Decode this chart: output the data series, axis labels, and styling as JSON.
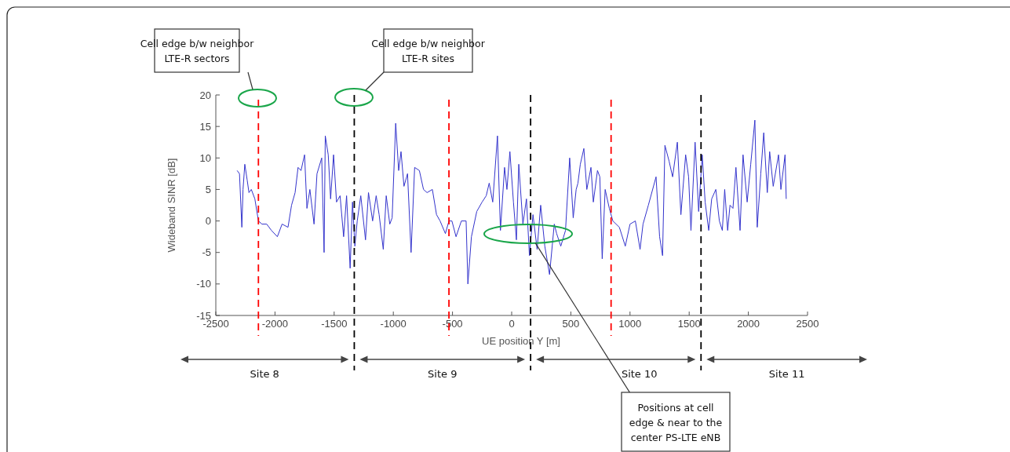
{
  "chart_data": {
    "type": "line",
    "xlabel": "UE position Y  [m]",
    "ylabel": "Wideband SINR [dB]",
    "xlim": [
      -2500,
      2500
    ],
    "xticks": [
      -2500,
      -2000,
      -1500,
      -1000,
      -500,
      0,
      500,
      1000,
      1500,
      2000,
      2500
    ],
    "ylim": [
      -15,
      20
    ],
    "yticks": [
      -15,
      -10,
      -5,
      0,
      5,
      10,
      15,
      20
    ],
    "grid": false,
    "line_style": "solid",
    "series": [
      {
        "color": "#3333cc",
        "x": [
          -2320,
          -2300,
          -2280,
          -2270,
          -2255,
          -2235,
          -2220,
          -2200,
          -2170,
          -2140,
          -2110,
          -2070,
          -2030,
          -1980,
          -1940,
          -1890,
          -1860,
          -1830,
          -1805,
          -1780,
          -1750,
          -1730,
          -1705,
          -1670,
          -1645,
          -1605,
          -1585,
          -1575,
          -1550,
          -1530,
          -1505,
          -1480,
          -1450,
          -1420,
          -1395,
          -1365,
          -1345,
          -1325,
          -1305,
          -1275,
          -1235,
          -1210,
          -1175,
          -1145,
          -1120,
          -1085,
          -1060,
          -1030,
          -1010,
          -980,
          -955,
          -935,
          -910,
          -880,
          -850,
          -820,
          -780,
          -745,
          -715,
          -670,
          -635,
          -605,
          -560,
          -530,
          -505,
          -470,
          -425,
          -385,
          -370,
          -340,
          -295,
          -250,
          -215,
          -190,
          -160,
          -120,
          -95,
          -60,
          -40,
          -15,
          15,
          40,
          60,
          95,
          125,
          150,
          180,
          215,
          245,
          280,
          320,
          360,
          380,
          415,
          455,
          490,
          520,
          545,
          560,
          580,
          610,
          635,
          670,
          690,
          725,
          745,
          765,
          790,
          825,
          855,
          910,
          960,
          1000,
          1045,
          1085,
          1110,
          1155,
          1220,
          1250,
          1275,
          1295,
          1330,
          1360,
          1400,
          1430,
          1470,
          1495,
          1515,
          1550,
          1580,
          1610,
          1635,
          1665,
          1690,
          1725,
          1755,
          1780,
          1800,
          1825,
          1845,
          1870,
          1895,
          1930,
          1955,
          1990,
          2020,
          2055,
          2075,
          2105,
          2130,
          2160,
          2180,
          2210,
          2255,
          2275,
          2310,
          2320
        ],
        "values": [
          8,
          7.5,
          -1,
          5,
          9,
          6.5,
          4.5,
          5,
          3.5,
          0,
          -0.5,
          -0.5,
          -1.5,
          -2.5,
          -0.5,
          -1,
          2.5,
          4.5,
          8.5,
          8,
          10.5,
          2,
          5,
          -0.5,
          7.5,
          10,
          -5,
          13.5,
          10.5,
          3.5,
          10.5,
          3,
          4,
          -2.5,
          4,
          -7.5,
          3,
          -4,
          0,
          4,
          -3,
          4.5,
          0,
          4,
          1,
          -4.5,
          4,
          -0.5,
          0.5,
          15.5,
          8,
          11,
          5.5,
          7.5,
          -5,
          8.5,
          8,
          5,
          4.5,
          5,
          1,
          0,
          -2,
          0,
          0,
          -2.5,
          0,
          0,
          -10,
          -2.5,
          1.5,
          3,
          4,
          6,
          3,
          13.5,
          -1.5,
          8.5,
          5,
          11,
          3,
          -3,
          9,
          -0.5,
          3.5,
          -5.5,
          1,
          -4.5,
          2.5,
          -4,
          -8.5,
          -0.5,
          -2,
          -4,
          -1.5,
          10,
          0.5,
          5,
          6,
          9,
          11.5,
          5,
          8.5,
          3,
          8,
          7,
          -6,
          5,
          2,
          0,
          -1,
          -4,
          -0.5,
          0,
          -4.5,
          -0.5,
          2.5,
          7,
          -2.5,
          -5.5,
          12,
          9.5,
          7,
          12.5,
          1,
          10.5,
          7,
          -1.5,
          12.5,
          1.5,
          10.5,
          3,
          -1.5,
          3.5,
          5,
          0,
          -1.5,
          5,
          -1.5,
          2.5,
          2,
          8.5,
          -1.5,
          10.5,
          3,
          9,
          16,
          -1,
          7.5,
          14,
          4.5,
          11,
          5.5,
          10.5,
          5,
          10.5,
          3.5
        ]
      }
    ],
    "ref_lines": [
      {
        "axis": "x",
        "value": -2140,
        "color": "#ff0000",
        "line_style": "dashed"
      },
      {
        "axis": "x",
        "value": -1330,
        "color": "#000000",
        "line_style": "dashed"
      },
      {
        "axis": "x",
        "value": -530,
        "color": "#ff0000",
        "line_style": "dashed"
      },
      {
        "axis": "x",
        "value": 160,
        "color": "#000000",
        "line_style": "dashed"
      },
      {
        "axis": "x",
        "value": 840,
        "color": "#ff0000",
        "line_style": "dashed"
      },
      {
        "axis": "x",
        "value": 1600,
        "color": "#000000",
        "line_style": "dashed"
      }
    ],
    "annotations": [
      "Cell edge b/w neighbor LTE-R sectors",
      "Cell edge b/w neighbor LTE-R sites",
      {
        "text": "Positions at cell edge & near to the center PS-LTE eNB",
        "x": 200,
        "y": -3.5
      },
      "Site 8",
      "Site 9",
      "Site 10",
      "Site 11"
    ]
  }
}
